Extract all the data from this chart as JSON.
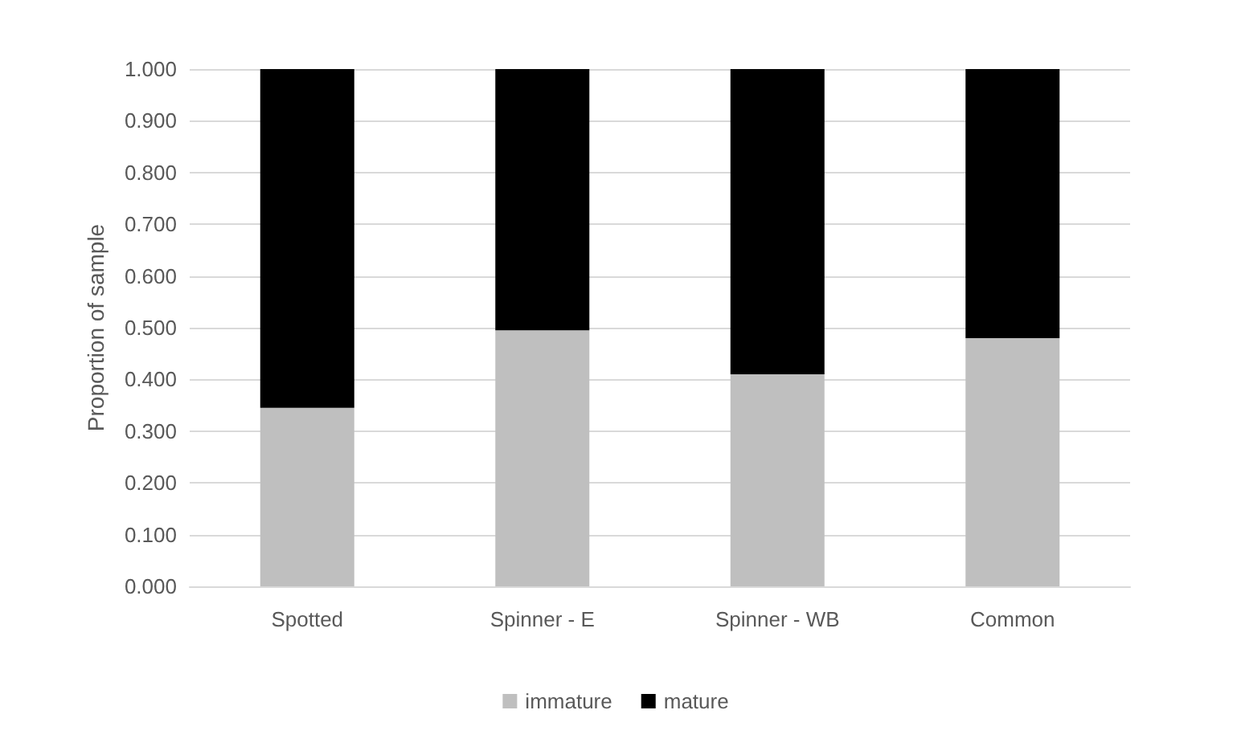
{
  "chart_data": {
    "type": "bar",
    "stacked": true,
    "ylabel": "Proportion of sample",
    "categories": [
      "Spotted",
      "Spinner - E",
      "Spinner - WB",
      "Common"
    ],
    "series": [
      {
        "name": "immature",
        "color": "#bfbfbf",
        "values": [
          0.345,
          0.495,
          0.41,
          0.48
        ]
      },
      {
        "name": "mature",
        "color": "#000000",
        "values": [
          0.655,
          0.505,
          0.59,
          0.52
        ]
      }
    ],
    "ylim": [
      0,
      1
    ],
    "yticks": [
      {
        "value": 0,
        "label": "0.000"
      },
      {
        "value": 0.1,
        "label": "0.100"
      },
      {
        "value": 0.2,
        "label": "0.200"
      },
      {
        "value": 0.3,
        "label": "0.300"
      },
      {
        "value": 0.4,
        "label": "0.400"
      },
      {
        "value": 0.5,
        "label": "0.500"
      },
      {
        "value": 0.6,
        "label": "0.600"
      },
      {
        "value": 0.7,
        "label": "0.700"
      },
      {
        "value": 0.8,
        "label": "0.800"
      },
      {
        "value": 0.9,
        "label": "0.900"
      },
      {
        "value": 1,
        "label": "1.000"
      }
    ],
    "grid": true,
    "legend": "bottom"
  }
}
